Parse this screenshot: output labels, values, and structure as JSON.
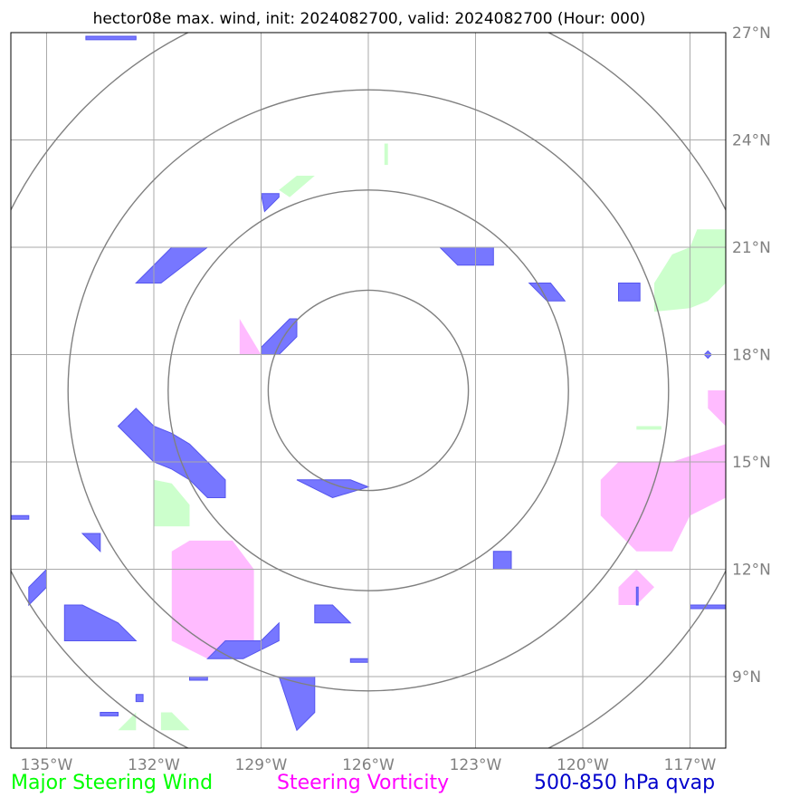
{
  "chart_data": {
    "type": "map",
    "title": "hector08e max. wind, init: 2024082700, valid: 2024082700 (Hour: 000)",
    "lon_range": [
      -136.0,
      -116.0
    ],
    "lat_range": [
      7.0,
      27.0
    ],
    "grid": true,
    "lon_ticks": [
      {
        "value": -135,
        "label": "135°W"
      },
      {
        "value": -132,
        "label": "132°W"
      },
      {
        "value": -129,
        "label": "129°W"
      },
      {
        "value": -126,
        "label": "126°W"
      },
      {
        "value": -123,
        "label": "123°W"
      },
      {
        "value": -120,
        "label": "120°W"
      },
      {
        "value": -117,
        "label": "117°W"
      }
    ],
    "lat_ticks": [
      {
        "value": 9,
        "label": "9°N"
      },
      {
        "value": 12,
        "label": "12°N"
      },
      {
        "value": 15,
        "label": "15°N"
      },
      {
        "value": 18,
        "label": "18°N"
      },
      {
        "value": 21,
        "label": "21°N"
      },
      {
        "value": 24,
        "label": "24°N"
      },
      {
        "value": 27,
        "label": "27°N"
      }
    ],
    "range_rings": {
      "center": {
        "lon": -126.0,
        "lat": 17.0
      },
      "radii_deg": [
        2.8,
        5.6,
        8.4,
        11.2
      ],
      "color": "#808080"
    },
    "legend": [
      {
        "label": "Major Steering Wind",
        "color": "#00ff00"
      },
      {
        "label": "Steering Vorticity",
        "color": "#ff00ff"
      },
      {
        "label": "500-850 hPa qvap",
        "color": "#0000cc"
      }
    ],
    "layers": [
      {
        "name": "Major Steering Wind",
        "fill": "#ccffcc",
        "polygons": [
          [
            [
              -128.5,
              22.6
            ],
            [
              -128.0,
              23.0
            ],
            [
              -127.5,
              23.0
            ],
            [
              -128.2,
              22.4
            ]
          ],
          [
            [
              -125.55,
              23.3
            ],
            [
              -125.45,
              23.3
            ],
            [
              -125.45,
              23.9
            ],
            [
              -125.55,
              23.9
            ]
          ],
          [
            [
              -118.0,
              20.0
            ],
            [
              -117.5,
              20.8
            ],
            [
              -117.0,
              21.0
            ],
            [
              -116.8,
              21.5
            ],
            [
              -116.0,
              21.5
            ],
            [
              -116.0,
              20.0
            ],
            [
              -116.5,
              19.5
            ],
            [
              -117.0,
              19.3
            ],
            [
              -118.0,
              19.2
            ]
          ],
          [
            [
              -132.0,
              14.5
            ],
            [
              -131.5,
              14.4
            ],
            [
              -131.0,
              13.8
            ],
            [
              -131.0,
              13.2
            ],
            [
              -132.0,
              13.2
            ]
          ],
          [
            [
              -131.8,
              7.5
            ],
            [
              -131.0,
              7.5
            ],
            [
              -131.5,
              8.0
            ],
            [
              -131.8,
              8.0
            ]
          ],
          [
            [
              -133.0,
              7.5
            ],
            [
              -132.5,
              7.5
            ],
            [
              -132.5,
              8.0
            ]
          ],
          [
            [
              -118.5,
              16.0
            ],
            [
              -117.8,
              16.0
            ],
            [
              -117.8,
              15.9
            ],
            [
              -118.5,
              15.9
            ]
          ]
        ]
      },
      {
        "name": "Steering Vorticity",
        "fill": "#ffbbff",
        "polygons": [
          [
            [
              -129.6,
              19.0
            ],
            [
              -129.0,
              18.0
            ],
            [
              -129.6,
              18.0
            ]
          ],
          [
            [
              -131.5,
              12.5
            ],
            [
              -131.0,
              12.8
            ],
            [
              -129.8,
              12.8
            ],
            [
              -129.2,
              12.0
            ],
            [
              -129.2,
              10.0
            ],
            [
              -129.5,
              9.5
            ],
            [
              -130.5,
              9.5
            ],
            [
              -131.5,
              10.0
            ]
          ],
          [
            [
              -119.5,
              14.5
            ],
            [
              -119.0,
              15.0
            ],
            [
              -117.5,
              15.0
            ],
            [
              -116.0,
              15.5
            ],
            [
              -116.0,
              14.0
            ],
            [
              -117.0,
              13.5
            ],
            [
              -117.5,
              12.5
            ],
            [
              -118.5,
              12.5
            ],
            [
              -119.5,
              13.5
            ]
          ],
          [
            [
              -116.5,
              17.0
            ],
            [
              -116.0,
              17.0
            ],
            [
              -116.0,
              16.0
            ],
            [
              -116.5,
              16.5
            ]
          ],
          [
            [
              -119.0,
              11.5
            ],
            [
              -118.5,
              12.0
            ],
            [
              -118.0,
              11.5
            ],
            [
              -118.5,
              11.0
            ],
            [
              -119.0,
              11.0
            ]
          ]
        ]
      },
      {
        "name": "500-850 hPa qvap",
        "fill": "#7777ff",
        "stroke": "#5555ee",
        "polygons": [
          [
            [
              -133.9,
              26.8
            ],
            [
              -132.5,
              26.8
            ],
            [
              -132.5,
              26.9
            ],
            [
              -133.9,
              26.9
            ]
          ],
          [
            [
              -131.5,
              21.0
            ],
            [
              -132.5,
              20.0
            ],
            [
              -131.8,
              20.0
            ],
            [
              -130.5,
              21.0
            ]
          ],
          [
            [
              -129.0,
              22.5
            ],
            [
              -128.5,
              22.5
            ],
            [
              -128.5,
              22.4
            ],
            [
              -128.9,
              22.0
            ]
          ],
          [
            [
              -124.0,
              21.0
            ],
            [
              -123.5,
              21.0
            ],
            [
              -122.5,
              21.0
            ],
            [
              -122.5,
              20.5
            ],
            [
              -123.5,
              20.5
            ]
          ],
          [
            [
              -121.5,
              20.0
            ],
            [
              -120.9,
              20.0
            ],
            [
              -120.5,
              19.5
            ],
            [
              -121.0,
              19.5
            ]
          ],
          [
            [
              -119.0,
              20.0
            ],
            [
              -118.4,
              20.0
            ],
            [
              -118.4,
              19.5
            ],
            [
              -119.0,
              19.5
            ]
          ],
          [
            [
              -129.0,
              18.0
            ],
            [
              -128.5,
              18.0
            ],
            [
              -128.0,
              18.5
            ],
            [
              -128.0,
              19.0
            ],
            [
              -128.2,
              19.0
            ],
            [
              -129.0,
              18.2
            ]
          ],
          [
            [
              -116.5,
              18.1
            ],
            [
              -116.4,
              18.0
            ],
            [
              -116.5,
              17.9
            ],
            [
              -116.6,
              18.0
            ]
          ],
          [
            [
              -133.0,
              16.0
            ],
            [
              -132.5,
              16.5
            ],
            [
              -132.0,
              16.0
            ],
            [
              -131.5,
              15.8
            ],
            [
              -131.0,
              15.5
            ],
            [
              -130.5,
              15.0
            ],
            [
              -130.0,
              14.5
            ],
            [
              -130.0,
              14.0
            ],
            [
              -130.5,
              14.0
            ],
            [
              -131.0,
              14.5
            ],
            [
              -131.5,
              14.8
            ],
            [
              -132.0,
              15.0
            ]
          ],
          [
            [
              -128.0,
              14.5
            ],
            [
              -126.5,
              14.5
            ],
            [
              -126.0,
              14.3
            ],
            [
              -127.0,
              14.0
            ]
          ],
          [
            [
              -136.0,
              13.5
            ],
            [
              -135.5,
              13.5
            ],
            [
              -135.5,
              13.4
            ],
            [
              -136.0,
              13.4
            ]
          ],
          [
            [
              -134.0,
              13.0
            ],
            [
              -133.5,
              13.0
            ],
            [
              -133.5,
              12.5
            ]
          ],
          [
            [
              -122.5,
              12.5
            ],
            [
              -122.0,
              12.5
            ],
            [
              -122.0,
              12.0
            ],
            [
              -122.5,
              12.0
            ]
          ],
          [
            [
              -135.5,
              11.5
            ],
            [
              -135.0,
              12.0
            ],
            [
              -135.0,
              11.5
            ],
            [
              -135.5,
              11.0
            ]
          ],
          [
            [
              -127.5,
              11.0
            ],
            [
              -127.0,
              11.0
            ],
            [
              -126.5,
              10.5
            ],
            [
              -127.5,
              10.5
            ]
          ],
          [
            [
              -134.5,
              11.0
            ],
            [
              -134.0,
              11.0
            ],
            [
              -133.0,
              10.5
            ],
            [
              -132.5,
              10.0
            ],
            [
              -134.5,
              10.0
            ]
          ],
          [
            [
              -130.5,
              9.5
            ],
            [
              -130.0,
              10.0
            ],
            [
              -129.0,
              10.0
            ],
            [
              -128.5,
              10.5
            ],
            [
              -128.5,
              10.0
            ],
            [
              -129.5,
              9.5
            ]
          ],
          [
            [
              -131.0,
              9.0
            ],
            [
              -130.5,
              9.0
            ],
            [
              -130.5,
              8.9
            ],
            [
              -131.0,
              8.9
            ]
          ],
          [
            [
              -126.5,
              9.5
            ],
            [
              -126.0,
              9.5
            ],
            [
              -126.0,
              9.4
            ],
            [
              -126.5,
              9.4
            ]
          ],
          [
            [
              -128.5,
              9.0
            ],
            [
              -127.5,
              9.0
            ],
            [
              -127.5,
              8.0
            ],
            [
              -128.0,
              7.5
            ]
          ],
          [
            [
              -117.0,
              11.0
            ],
            [
              -116.0,
              11.0
            ],
            [
              -116.0,
              10.9
            ],
            [
              -117.0,
              10.9
            ]
          ],
          [
            [
              -118.5,
              11.5
            ],
            [
              -118.45,
              11.5
            ],
            [
              -118.45,
              11.0
            ],
            [
              -118.5,
              11.0
            ]
          ],
          [
            [
              -132.5,
              8.5
            ],
            [
              -132.3,
              8.5
            ],
            [
              -132.3,
              8.3
            ],
            [
              -132.5,
              8.3
            ]
          ],
          [
            [
              -133.5,
              8.0
            ],
            [
              -133.0,
              8.0
            ],
            [
              -133.0,
              7.9
            ],
            [
              -133.5,
              7.9
            ]
          ]
        ]
      }
    ]
  }
}
